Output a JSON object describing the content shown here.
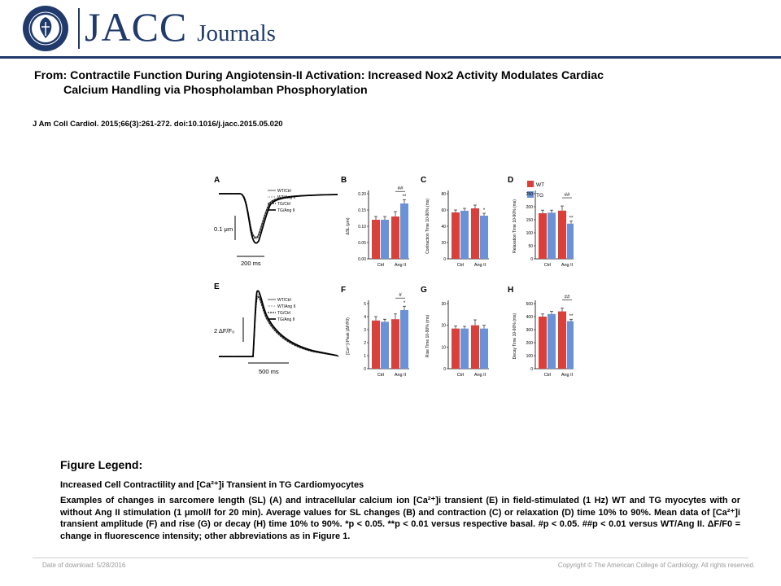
{
  "header": {
    "brand_main": "JACC",
    "brand_sub": "Journals",
    "seal_text": "AMERICAN COLLEGE OF CARDIOLOGY",
    "brand_color": "#1f3a6b"
  },
  "article": {
    "title_line1": "From: Contractile Function During Angiotensin-II Activation: Increased Nox2 Activity Modulates Cardiac",
    "title_line2": "Calcium Handling via Phospholamban Phosphorylation",
    "citation": "J Am Coll Cardiol. 2015;66(3):261-272. doi:10.1016/j.jacc.2015.05.020"
  },
  "figure": {
    "colors": {
      "wt": "#d9403a",
      "tg": "#6b92d6"
    },
    "legend": [
      "WT",
      "TG"
    ],
    "trace_legend": [
      "WT/Ctrl",
      "WT/Ang II",
      "TG/Ctrl",
      "TG/Ang II"
    ],
    "panels": {
      "A": {
        "letter": "A",
        "scale_y": "0.1 μm",
        "scale_x": "200 ms"
      },
      "E": {
        "letter": "E",
        "scale_y": "2 ΔF/F₀",
        "scale_x": "500 ms"
      }
    },
    "bar_panels": [
      {
        "letter": "B",
        "ylabel": "ΔSL (μm)",
        "ticks": [
          "0.00",
          "0.05",
          "0.10",
          "0.15",
          "0.20"
        ],
        "ymax": 0.2,
        "wt": [
          0.12,
          0.13
        ],
        "tg": [
          0.12,
          0.17
        ],
        "err": [
          0.01,
          0.01,
          0.015,
          0.012
        ],
        "annot_top": "##",
        "annot_bar": "**"
      },
      {
        "letter": "C",
        "ylabel": "Contraction Time 10-90% (ms)",
        "ticks": [
          "0",
          "20",
          "40",
          "60",
          "80"
        ],
        "ymax": 80,
        "wt": [
          57,
          62
        ],
        "tg": [
          59,
          53
        ],
        "err": [
          3,
          3,
          4,
          3
        ],
        "annot_top": "",
        "annot_bar": "*"
      },
      {
        "letter": "D",
        "ylabel": "Relaxation Time 10-90% (ms)",
        "ticks": [
          "0",
          "50",
          "100",
          "150",
          "200",
          "250"
        ],
        "ymax": 250,
        "wt": [
          175,
          185
        ],
        "tg": [
          177,
          135
        ],
        "err": [
          12,
          10,
          18,
          10
        ],
        "annot_top": "##",
        "annot_bar": "**"
      },
      {
        "letter": "F",
        "ylabel": "[Ca²⁺]i Peak (ΔF/F0)",
        "ticks": [
          "0",
          "1",
          "2",
          "3",
          "4",
          "5"
        ],
        "ymax": 5,
        "wt": [
          3.7,
          3.8
        ],
        "tg": [
          3.6,
          4.5
        ],
        "err": [
          0.3,
          0.2,
          0.4,
          0.3
        ],
        "annot_top": "#",
        "annot_bar": "*"
      },
      {
        "letter": "G",
        "ylabel": "Rise Time 10-90% (ms)",
        "ticks": [
          "0",
          "10",
          "20",
          "30"
        ],
        "ymax": 30,
        "wt": [
          18.5,
          20
        ],
        "tg": [
          18.5,
          18.5
        ],
        "err": [
          1.2,
          1.0,
          2.5,
          1.5
        ],
        "annot_top": "",
        "annot_bar": ""
      },
      {
        "letter": "H",
        "ylabel": "Decay Time 10-90% (ms)",
        "ticks": [
          "0",
          "100",
          "200",
          "300",
          "400",
          "500"
        ],
        "ymax": 500,
        "wt": [
          400,
          440
        ],
        "tg": [
          420,
          365
        ],
        "err": [
          20,
          20,
          25,
          15
        ],
        "annot_top": "##",
        "annot_bar": "**"
      }
    ],
    "x_categories": [
      "Ctrl",
      "Ang II"
    ]
  },
  "legend": {
    "heading": "Figure Legend:",
    "subtitle": "Increased Cell Contractility and [Ca²⁺]i Transient in TG Cardiomyocytes",
    "body": "Examples of changes in sarcomere length (SL) (A) and intracellular calcium ion [Ca²⁺]i transient (E) in field-stimulated (1 Hz) WT and TG myocytes with or without Ang II stimulation (1 μmol/l for 20 min). Average values for SL changes (B) and contraction (C) or relaxation (D) time 10% to 90%. Mean data of [Ca²⁺]i transient amplitude (F) and rise (G) or decay (H) time 10% to 90%. *p < 0.05. **p < 0.01 versus respective basal. #p < 0.05. ##p < 0.01 versus WT/Ang II. ΔF/F0 = change in fluorescence intensity; other abbreviations as in Figure 1."
  },
  "footer": {
    "download_date": "Date of download:  5/28/2016",
    "copyright": "Copyright © The American College of Cardiology. All rights reserved."
  }
}
